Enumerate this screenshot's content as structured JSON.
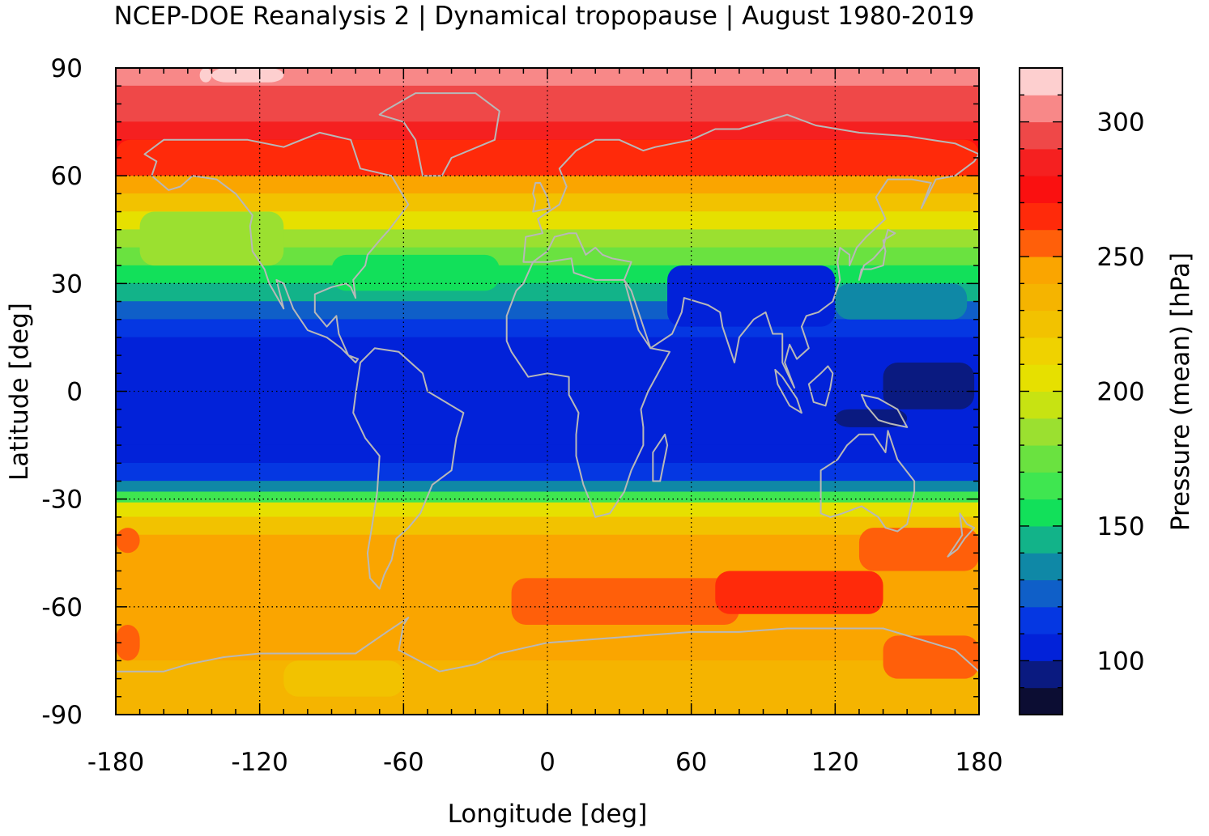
{
  "chart_data": {
    "type": "heatmap",
    "title": "NCEP-DOE Reanalysis 2 | Dynamical tropopause | August 1980-2019",
    "xlabel": "Longitude [deg]",
    "ylabel": "Latitude [deg]",
    "colorbar_label": "Pressure (mean) [hPa]",
    "xlim": [
      -180,
      180
    ],
    "ylim": [
      -90,
      90
    ],
    "x_ticks": [
      -180,
      -120,
      -60,
      0,
      60,
      120,
      180
    ],
    "y_ticks": [
      90,
      60,
      30,
      0,
      -30,
      -60,
      -90
    ],
    "colorbar_ticks": [
      100,
      150,
      200,
      250,
      300
    ],
    "colorbar_range": [
      80,
      320
    ],
    "colorbar_step": 10,
    "grid": true,
    "color_levels": [
      {
        "min": 80,
        "max": 90,
        "color": "#0c0d33"
      },
      {
        "min": 90,
        "max": 100,
        "color": "#0a1a80"
      },
      {
        "min": 100,
        "max": 110,
        "color": "#0222d9"
      },
      {
        "min": 110,
        "max": 120,
        "color": "#0537e2"
      },
      {
        "min": 120,
        "max": 130,
        "color": "#0f5fc8"
      },
      {
        "min": 130,
        "max": 140,
        "color": "#0f88a6"
      },
      {
        "min": 140,
        "max": 150,
        "color": "#12b389"
      },
      {
        "min": 150,
        "max": 160,
        "color": "#12e05a"
      },
      {
        "min": 160,
        "max": 170,
        "color": "#3fe650"
      },
      {
        "min": 170,
        "max": 180,
        "color": "#6ae240"
      },
      {
        "min": 180,
        "max": 190,
        "color": "#9be030"
      },
      {
        "min": 190,
        "max": 200,
        "color": "#c7e312"
      },
      {
        "min": 200,
        "max": 210,
        "color": "#e6e000"
      },
      {
        "min": 210,
        "max": 220,
        "color": "#efd200"
      },
      {
        "min": 220,
        "max": 230,
        "color": "#f2c200"
      },
      {
        "min": 230,
        "max": 240,
        "color": "#f5b400"
      },
      {
        "min": 240,
        "max": 250,
        "color": "#faa500"
      },
      {
        "min": 250,
        "max": 260,
        "color": "#ff5f0a"
      },
      {
        "min": 260,
        "max": 270,
        "color": "#ff2a0a"
      },
      {
        "min": 270,
        "max": 280,
        "color": "#fa1010"
      },
      {
        "min": 280,
        "max": 290,
        "color": "#f52020"
      },
      {
        "min": 290,
        "max": 300,
        "color": "#ef4848"
      },
      {
        "min": 300,
        "max": 310,
        "color": "#f88888"
      },
      {
        "min": 310,
        "max": 320,
        "color": "#fdcfcf"
      }
    ],
    "latitude_bands": [
      {
        "lat": [
          85,
          90
        ],
        "value": 305
      },
      {
        "lat": [
          80,
          85
        ],
        "value": 298
      },
      {
        "lat": [
          75,
          80
        ],
        "value": 292
      },
      {
        "lat": [
          70,
          75
        ],
        "value": 285
      },
      {
        "lat": [
          65,
          70
        ],
        "value": 275
      },
      {
        "lat": [
          60,
          65
        ],
        "value": 262
      },
      {
        "lat": [
          55,
          60
        ],
        "value": 245
      },
      {
        "lat": [
          50,
          55
        ],
        "value": 225
      },
      {
        "lat": [
          45,
          50
        ],
        "value": 205
      },
      {
        "lat": [
          40,
          45
        ],
        "value": 185
      },
      {
        "lat": [
          35,
          40
        ],
        "value": 170
      },
      {
        "lat": [
          30,
          35
        ],
        "value": 158
      },
      {
        "lat": [
          25,
          30
        ],
        "value": 145
      },
      {
        "lat": [
          20,
          25
        ],
        "value": 128
      },
      {
        "lat": [
          15,
          20
        ],
        "value": 115
      },
      {
        "lat": [
          -15,
          15
        ],
        "value": 105
      },
      {
        "lat": [
          -20,
          -15
        ],
        "value": 108
      },
      {
        "lat": [
          -25,
          -20
        ],
        "value": 118
      },
      {
        "lat": [
          -28,
          -25
        ],
        "value": 135
      },
      {
        "lat": [
          -31,
          -28
        ],
        "value": 165
      },
      {
        "lat": [
          -35,
          -31
        ],
        "value": 205
      },
      {
        "lat": [
          -40,
          -35
        ],
        "value": 228
      },
      {
        "lat": [
          -75,
          -40
        ],
        "value": 245
      },
      {
        "lat": [
          -85,
          -75
        ],
        "value": 232
      },
      {
        "lat": [
          -90,
          -85
        ],
        "value": 238
      }
    ],
    "regions": [
      {
        "lon": [
          -145,
          -140
        ],
        "lat": [
          86,
          90
        ],
        "value": 315
      },
      {
        "lon": [
          -140,
          -110
        ],
        "lat": [
          86,
          90
        ],
        "value": 315
      },
      {
        "lon": [
          -180,
          180
        ],
        "lat": [
          60,
          70
        ],
        "value": 268
      },
      {
        "lon": [
          -170,
          -110
        ],
        "lat": [
          35,
          50
        ],
        "value": 180
      },
      {
        "lon": [
          -90,
          -20
        ],
        "lat": [
          28,
          38
        ],
        "value": 150
      },
      {
        "lon": [
          50,
          120
        ],
        "lat": [
          18,
          35
        ],
        "value": 102
      },
      {
        "lon": [
          120,
          175
        ],
        "lat": [
          20,
          30
        ],
        "value": 135
      },
      {
        "lon": [
          140,
          178
        ],
        "lat": [
          -5,
          8
        ],
        "value": 92
      },
      {
        "lon": [
          120,
          150
        ],
        "lat": [
          -10,
          -5
        ],
        "value": 95
      },
      {
        "lon": [
          -180,
          -170
        ],
        "lat": [
          -45,
          -38
        ],
        "value": 255
      },
      {
        "lon": [
          -15,
          80
        ],
        "lat": [
          -65,
          -52
        ],
        "value": 255
      },
      {
        "lon": [
          70,
          140
        ],
        "lat": [
          -62,
          -50
        ],
        "value": 262
      },
      {
        "lon": [
          130,
          180
        ],
        "lat": [
          -50,
          -38
        ],
        "value": 255
      },
      {
        "lon": [
          140,
          180
        ],
        "lat": [
          -80,
          -68
        ],
        "value": 255
      },
      {
        "lon": [
          -180,
          -170
        ],
        "lat": [
          -75,
          -65
        ],
        "value": 255
      },
      {
        "lon": [
          -110,
          -60
        ],
        "lat": [
          -85,
          -75
        ],
        "value": 228
      }
    ]
  }
}
